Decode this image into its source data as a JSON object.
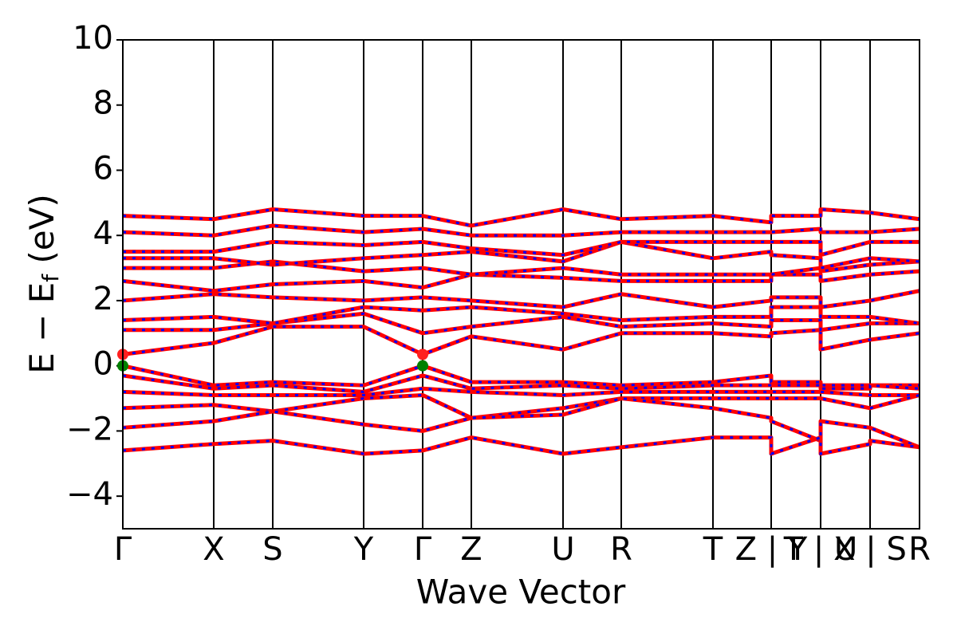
{
  "chart_data": {
    "type": "band",
    "xlabel": "Wave Vector",
    "ylabel_parts": [
      "E − E",
      "f",
      " (eV)"
    ],
    "xlim": [
      0,
      9.99
    ],
    "ylim": [
      -5,
      10
    ],
    "yticks": [
      {
        "value": -4,
        "label": "−4"
      },
      {
        "value": -2,
        "label": "−2"
      },
      0,
      2,
      4,
      6,
      8,
      10
    ],
    "xticks": [
      {
        "value": 0,
        "label": "Γ"
      },
      {
        "value": 1.14,
        "label": "X"
      },
      {
        "value": 1.88,
        "label": "S"
      },
      {
        "value": 3.02,
        "label": "Y"
      },
      {
        "value": 3.76,
        "label": "Γ"
      },
      {
        "value": 4.37,
        "label": "Z"
      },
      {
        "value": 5.52,
        "label": "U"
      },
      {
        "value": 6.25,
        "label": "R"
      },
      {
        "value": 7.4,
        "label": "T"
      },
      {
        "value": 8.13,
        "label": "Z | Y"
      },
      {
        "value": 8.75,
        "label": "T | U"
      },
      {
        "value": 9.37,
        "label": "X | S"
      },
      {
        "value": 9.99,
        "label": "R"
      }
    ],
    "x": [
      0,
      1.14,
      1.88,
      3.02,
      3.76,
      4.37,
      5.52,
      6.25,
      7.4,
      8.13,
      8.13,
      8.75,
      8.75,
      9.37,
      9.37,
      9.99
    ],
    "color": "#ff0000",
    "dash_color": "#0000ff",
    "bands": [
      [
        0,
        -0.6,
        -0.5,
        -0.6,
        0,
        -0.5,
        -0.5,
        -0.6,
        -0.5,
        -0.3,
        -0.5,
        -0.5,
        -0.6,
        -0.6,
        -0.6,
        -0.6
      ],
      [
        -0.3,
        -0.7,
        -0.6,
        -0.8,
        -0.3,
        -0.7,
        -0.6,
        -0.7,
        -0.6,
        -0.6,
        -0.6,
        -0.6,
        -0.7,
        -0.7,
        -0.6,
        -0.7
      ],
      [
        -0.8,
        -0.9,
        -0.9,
        -0.9,
        -0.7,
        -0.8,
        -0.9,
        -0.8,
        -0.8,
        -0.8,
        -0.8,
        -0.8,
        -0.8,
        -0.9,
        -0.9,
        -0.9
      ],
      [
        -1.3,
        -1.2,
        -1.4,
        -1.0,
        -0.9,
        -1.6,
        -1.3,
        -1.0,
        -1.0,
        -1.0,
        -1.0,
        -1.0,
        -1.0,
        -1.3,
        -1.3,
        -0.9
      ],
      [
        -1.9,
        -1.7,
        -1.4,
        -1.8,
        -2.0,
        -1.6,
        -1.5,
        -1.0,
        -1.3,
        -1.6,
        -1.7,
        -2.3,
        -1.7,
        -1.9,
        -1.9,
        -2.5
      ],
      [
        -2.6,
        -2.4,
        -2.3,
        -2.7,
        -2.6,
        -2.2,
        -2.7,
        -2.5,
        -2.2,
        -2.2,
        -2.7,
        -2.2,
        -2.7,
        -2.4,
        -2.3,
        -2.5
      ],
      [
        0.35,
        0.7,
        1.2,
        1.2,
        0.35,
        0.9,
        0.5,
        1.0,
        1.0,
        0.9,
        1.0,
        1.1,
        0.5,
        0.8,
        0.8,
        1.0
      ],
      [
        1.1,
        1.1,
        1.3,
        1.6,
        1.0,
        1.2,
        1.5,
        1.2,
        1.3,
        1.2,
        1.4,
        1.4,
        1.1,
        1.3,
        1.3,
        1.3
      ],
      [
        1.4,
        1.5,
        1.3,
        1.8,
        1.7,
        1.8,
        1.6,
        1.4,
        1.5,
        1.5,
        1.8,
        1.8,
        1.5,
        1.5,
        1.5,
        1.3
      ],
      [
        2.0,
        2.2,
        2.1,
        2.0,
        2.1,
        2.0,
        1.8,
        2.2,
        1.8,
        2.0,
        2.1,
        2.1,
        1.8,
        2.0,
        2.0,
        2.3
      ],
      [
        2.6,
        2.3,
        2.5,
        2.6,
        2.4,
        2.8,
        2.7,
        2.6,
        2.6,
        2.6,
        2.8,
        2.8,
        2.6,
        2.8,
        2.8,
        2.9
      ],
      [
        3.0,
        3.0,
        3.2,
        2.9,
        3.0,
        2.8,
        3.0,
        2.8,
        2.8,
        2.8,
        2.8,
        3.0,
        2.9,
        3.1,
        3.1,
        3.2
      ],
      [
        3.3,
        3.3,
        3.1,
        3.3,
        3.4,
        3.5,
        3.2,
        3.8,
        3.3,
        3.5,
        3.4,
        3.3,
        3.0,
        3.3,
        3.3,
        3.2
      ],
      [
        3.5,
        3.5,
        3.8,
        3.7,
        3.8,
        3.6,
        3.4,
        3.8,
        3.8,
        3.8,
        3.8,
        3.8,
        3.4,
        3.8,
        3.8,
        3.8
      ],
      [
        4.1,
        4.0,
        4.3,
        4.1,
        4.2,
        4.0,
        4.0,
        4.1,
        4.1,
        4.1,
        4.1,
        4.2,
        4.1,
        4.1,
        4.1,
        4.2
      ],
      [
        4.6,
        4.5,
        4.8,
        4.6,
        4.6,
        4.3,
        4.8,
        4.5,
        4.6,
        4.4,
        4.6,
        4.6,
        4.8,
        4.7,
        4.7,
        4.5
      ]
    ],
    "points": [
      {
        "x": 0,
        "y": 0.35,
        "color": "#ff2020"
      },
      {
        "x": 3.76,
        "y": 0.35,
        "color": "#ff2020"
      },
      {
        "x": 0,
        "y": 0,
        "color": "#008000"
      },
      {
        "x": 3.76,
        "y": 0,
        "color": "#008000"
      }
    ]
  }
}
